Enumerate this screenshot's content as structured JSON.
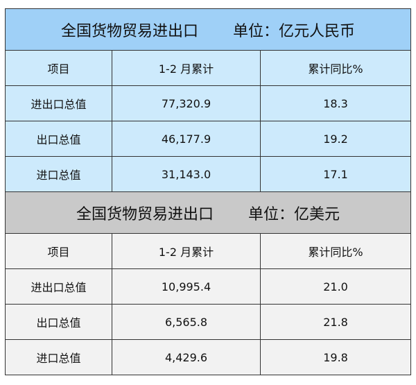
{
  "tables": [
    {
      "title": "全国货物贸易进出口",
      "unit": "单位：亿元人民币",
      "headers": [
        "项目",
        "1-2 月累计",
        "累计同比%"
      ],
      "rows": [
        [
          "进出口总值",
          "77,320.9",
          "18.3"
        ],
        [
          "出口总值",
          "46,177.9",
          "19.2"
        ],
        [
          "进口总值",
          "31,143.0",
          "17.1"
        ]
      ]
    },
    {
      "title": "全国货物贸易进出口",
      "unit": "单位：亿美元",
      "headers": [
        "项目",
        "1-2 月累计",
        "累计同比%"
      ],
      "rows": [
        [
          "进出口总值",
          "10,995.4",
          "21.0"
        ],
        [
          "出口总值",
          "6,565.8",
          "21.8"
        ],
        [
          "进口总值",
          "4,429.6",
          "19.8"
        ]
      ]
    }
  ],
  "colors": {
    "rmb_title": "#9fd0f7",
    "rmb_rows": "#cdeafc",
    "usd_title": "#c9c9c9",
    "usd_rows": "#f2f2f2"
  }
}
